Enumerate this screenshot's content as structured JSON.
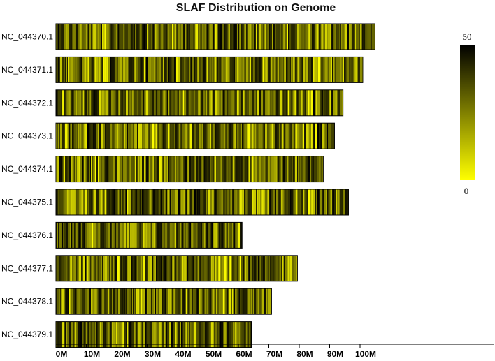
{
  "chart_data": {
    "type": "heatmap",
    "title": "SLAF Distribution on Genome",
    "xlabel": "",
    "ylabel": "",
    "x_unit": "Mb",
    "x_ticks": [
      0,
      10,
      20,
      30,
      40,
      50,
      60,
      70,
      80,
      90,
      100
    ],
    "x_tick_labels": [
      "0M",
      "10M",
      "20M",
      "30M",
      "40M",
      "50M",
      "60M",
      "70M",
      "80M",
      "90M",
      "100M"
    ],
    "chromosomes": [
      {
        "name": "NC_044370.1",
        "length_mb": 104.9
      },
      {
        "name": "NC_044371.1",
        "length_mb": 100.9
      },
      {
        "name": "NC_044372.1",
        "length_mb": 94.4
      },
      {
        "name": "NC_044373.1",
        "length_mb": 91.6
      },
      {
        "name": "NC_044374.1",
        "length_mb": 87.9
      },
      {
        "name": "NC_044375.1",
        "length_mb": 96.2
      },
      {
        "name": "NC_044376.1",
        "length_mb": 61.2
      },
      {
        "name": "NC_044377.1",
        "length_mb": 79.4
      },
      {
        "name": "NC_044378.1",
        "length_mb": 70.9
      },
      {
        "name": "NC_044379.1",
        "length_mb": 64.3
      }
    ],
    "color_scale": {
      "min": 0,
      "max": 50,
      "low_color": "#ffff00",
      "high_color": "#000000"
    },
    "legend": {
      "max_label": "50",
      "min_label": "0",
      "placement": "top-right"
    }
  }
}
